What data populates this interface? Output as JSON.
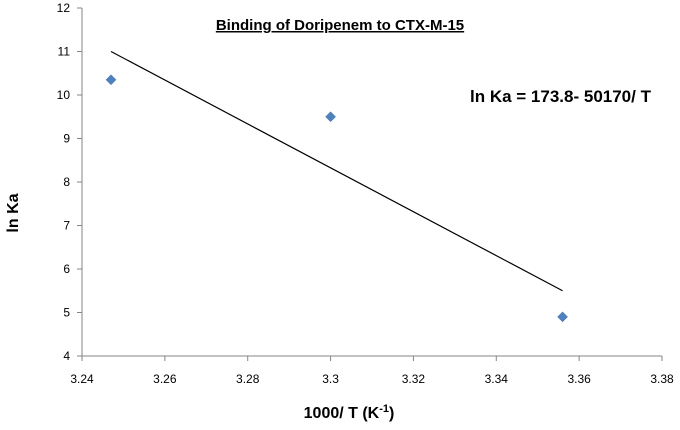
{
  "chart_data": {
    "type": "scatter",
    "title": "Binding of Doripenem to CTX-M-15",
    "xlabel_main": "1000/ T (K",
    "xlabel_sup": "-1",
    "xlabel_end": ")",
    "ylabel": "ln Ka",
    "xlim": [
      3.24,
      3.38
    ],
    "ylim": [
      4,
      12
    ],
    "x_ticks": [
      "3.24",
      "3.26",
      "3.28",
      "3.3",
      "3.32",
      "3.34",
      "3.36",
      "3.38"
    ],
    "y_ticks": [
      "4",
      "5",
      "6",
      "7",
      "8",
      "9",
      "10",
      "11",
      "12"
    ],
    "points": [
      {
        "x": 3.247,
        "y": 10.35
      },
      {
        "x": 3.3,
        "y": 9.5
      },
      {
        "x": 3.356,
        "y": 4.9
      }
    ],
    "trendline": {
      "x": [
        3.247,
        3.356
      ],
      "y": [
        11.0,
        5.5
      ]
    },
    "annotation": "ln Ka = 173.8- 50170/ T",
    "marker_color": "#4f81bd",
    "line_color": "#000000",
    "grid": false
  }
}
